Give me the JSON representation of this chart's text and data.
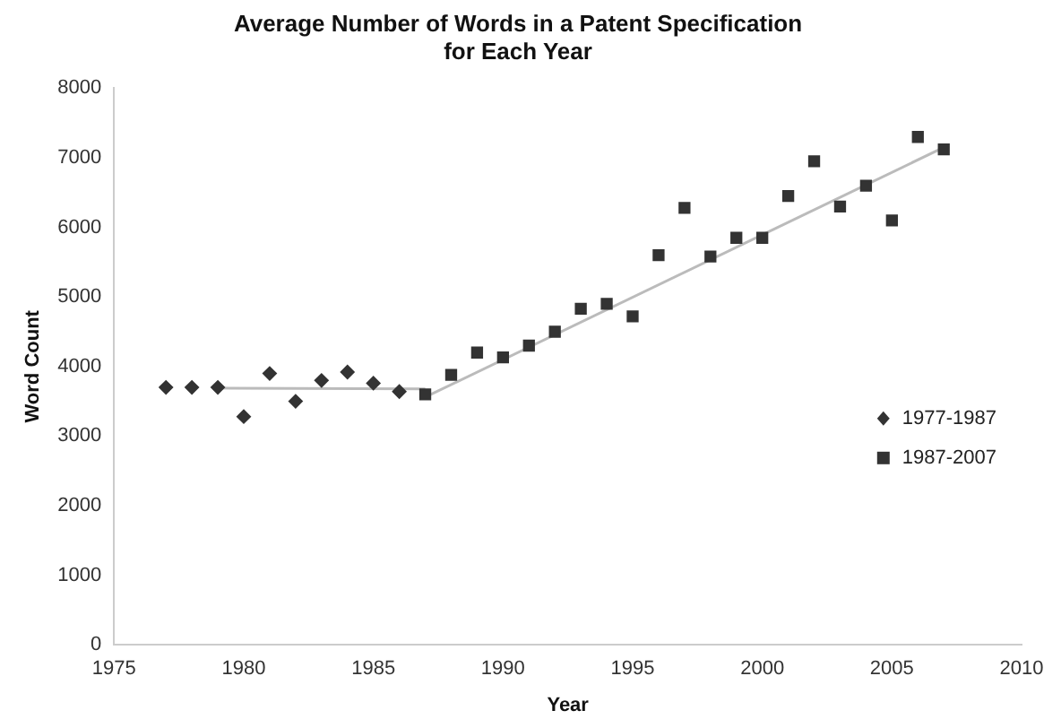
{
  "chart_data": {
    "type": "scatter",
    "title": "Average Number of Words in a Patent Specification\nfor Each Year",
    "xlabel": "Year",
    "ylabel": "Word Count",
    "xlim": [
      1975,
      2010
    ],
    "xticks": [
      1975,
      1980,
      1985,
      1990,
      1995,
      2000,
      2005,
      2010
    ],
    "ylim": [
      0,
      8000
    ],
    "yticks": [
      0,
      1000,
      2000,
      3000,
      4000,
      5000,
      6000,
      7000,
      8000
    ],
    "grid": false,
    "legend": "right",
    "series": [
      {
        "name": "1977-1987",
        "color": "#333333",
        "marker": "diamond",
        "x": [
          1977,
          1978,
          1979,
          1980,
          1981,
          1982,
          1983,
          1984,
          1985,
          1986
        ],
        "values": [
          3700,
          3700,
          3700,
          3280,
          3900,
          3500,
          3800,
          3920,
          3760,
          3640
        ]
      },
      {
        "name": "1987-2007",
        "color": "#333333",
        "marker": "square",
        "x": [
          1987,
          1988,
          1989,
          1990,
          1991,
          1992,
          1993,
          1994,
          1995,
          1996,
          1997,
          1998,
          1999,
          2000,
          2001,
          2002,
          2003,
          2004,
          2005,
          2006,
          2007
        ],
        "values": [
          3600,
          3880,
          4200,
          4130,
          4300,
          4500,
          4830,
          4900,
          4720,
          5600,
          6280,
          5580,
          5850,
          5850,
          6450,
          6950,
          6300,
          6600,
          6100,
          7300,
          7120
        ]
      },
      {
        "type": "line",
        "color": "#bbbbbb",
        "marker": "none",
        "x": [
          1979,
          1987
        ],
        "values": [
          3690,
          3680
        ]
      },
      {
        "type": "line",
        "color": "#bbbbbb",
        "marker": "none",
        "x": [
          1987,
          2007
        ],
        "values": [
          3560,
          7150
        ]
      }
    ]
  }
}
